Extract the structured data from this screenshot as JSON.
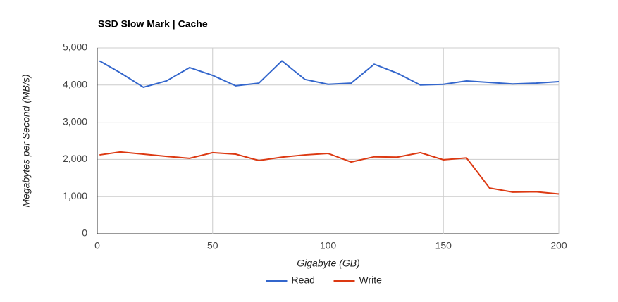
{
  "chart_data": {
    "type": "line",
    "title": "SSD Slow Mark | Cache",
    "x_label": "Gigabyte (GB)",
    "y_label": "Megabytes per Second (MB/s)",
    "x": [
      1,
      10,
      20,
      30,
      40,
      50,
      60,
      70,
      80,
      90,
      100,
      110,
      120,
      130,
      140,
      150,
      160,
      170,
      180,
      190,
      200
    ],
    "series": [
      {
        "name": "Read",
        "color": "#3366cc",
        "values": [
          4650,
          4330,
          3940,
          4110,
          4470,
          4260,
          3980,
          4050,
          4650,
          4150,
          4020,
          4050,
          4560,
          4320,
          4000,
          4020,
          4110,
          4070,
          4030,
          4050,
          4090
        ]
      },
      {
        "name": "Write",
        "color": "#dc3912",
        "values": [
          2120,
          2200,
          2140,
          2080,
          2030,
          2180,
          2140,
          1970,
          2060,
          2120,
          2160,
          1930,
          2070,
          2060,
          2180,
          1990,
          2040,
          1230,
          1120,
          1130,
          1070
        ]
      }
    ],
    "xlim": [
      0,
      200
    ],
    "xticks": [
      0,
      50,
      100,
      150,
      200
    ],
    "ylim": [
      0,
      5000
    ],
    "yticks": [
      0,
      {
        "value": 1000,
        "label": "1,000"
      },
      {
        "value": 2000,
        "label": "2,000"
      },
      {
        "value": 3000,
        "label": "3,000"
      },
      {
        "value": 4000,
        "label": "4,000"
      },
      {
        "value": 5000,
        "label": "5,000"
      }
    ],
    "grid": true,
    "legend": "bottom"
  }
}
